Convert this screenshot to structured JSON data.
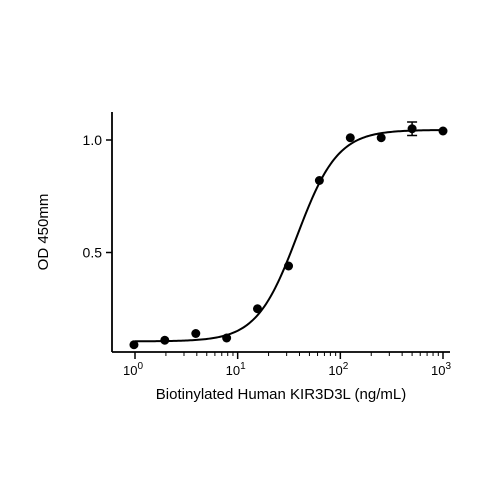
{
  "chart_data": {
    "type": "scatter",
    "title": "",
    "xlabel": "Biotinylated Human KIR3D3L (ng/mL)",
    "ylabel": "OD 450mm",
    "x_scale": "log",
    "xlim": [
      0.8,
      1200
    ],
    "ylim": [
      0.05,
      1.13
    ],
    "x_ticks": [
      {
        "value": 1,
        "base": "10",
        "exp": "0"
      },
      {
        "value": 10,
        "base": "10",
        "exp": "1"
      },
      {
        "value": 100,
        "base": "10",
        "exp": "2"
      },
      {
        "value": 1000,
        "base": "10",
        "exp": "3"
      }
    ],
    "y_ticks": [
      {
        "value": 0.5,
        "label": "0.5"
      },
      {
        "value": 1.0,
        "label": "1.0"
      }
    ],
    "grid": false,
    "legend": "none",
    "series": [
      {
        "x": [
          0.977,
          1.95,
          3.91,
          7.81,
          15.6,
          31.3,
          62.5,
          125,
          250,
          500,
          1000
        ],
        "y": [
          0.09,
          0.11,
          0.14,
          0.12,
          0.25,
          0.44,
          0.82,
          1.01,
          1.01,
          1.05,
          1.04
        ],
        "error": [
          0,
          0,
          0,
          0,
          0,
          0,
          0,
          0,
          0,
          0.03,
          0
        ]
      }
    ],
    "fit": {
      "model": "4PL",
      "bottom": 0.105,
      "top": 1.045,
      "ec50": 38,
      "hill": 2.2
    }
  }
}
